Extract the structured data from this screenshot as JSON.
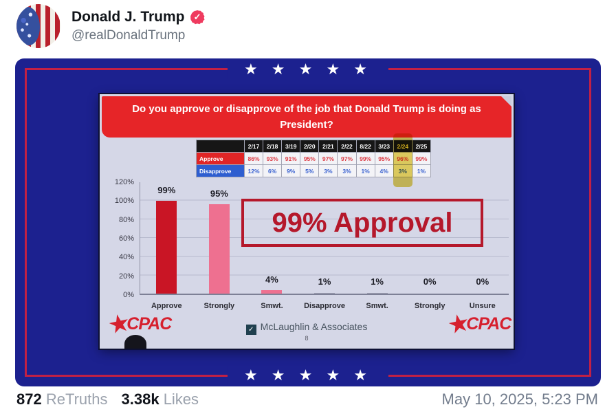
{
  "post": {
    "author": "Donald J. Trump",
    "handle": "@realDonaldTrump",
    "retruths_count": "872",
    "retruths_label": "ReTruths",
    "likes_count": "3.38k",
    "likes_label": "Likes",
    "timestamp": "May 10, 2025, 5:23 PM"
  },
  "slide": {
    "stars": "★ ★ ★ ★ ★",
    "question": "Do you approve or disapprove of the job that Donald Trump is doing as President?",
    "stamp": "99% Approval",
    "cpac": "CPAC",
    "source": "McLaughlin & Associates",
    "page_number": "8",
    "table": {
      "columns": [
        "2/17",
        "2/18",
        "3/19",
        "2/20",
        "2/21",
        "2/22",
        "8/22",
        "3/23",
        "2/24",
        "2/25"
      ],
      "highlight_index": 8,
      "rows": [
        {
          "label": "Approve",
          "values": [
            "86%",
            "93%",
            "91%",
            "95%",
            "97%",
            "97%",
            "99%",
            "95%",
            "96%",
            "99%"
          ]
        },
        {
          "label": "Disapprove",
          "values": [
            "12%",
            "6%",
            "9%",
            "5%",
            "3%",
            "3%",
            "1%",
            "4%",
            "3%",
            "1%"
          ]
        }
      ]
    }
  },
  "chart_data": {
    "type": "bar",
    "title": "Do you approve or disapprove of the job that Donald Trump is doing as President?",
    "categories": [
      "Approve",
      "Strongly",
      "Smwt.",
      "Disapprove",
      "Smwt.",
      "Strongly",
      "Unsure"
    ],
    "values": [
      99,
      95,
      4,
      1,
      1,
      0,
      0
    ],
    "value_labels": [
      "99%",
      "95%",
      "4%",
      "1%",
      "1%",
      "0%",
      "0%"
    ],
    "bar_colors": [
      "#c91525",
      "#ee7090",
      "#ee7090",
      "#9b9db0",
      "#9b9db0",
      "#9b9db0",
      "#9b9db0"
    ],
    "ytick_labels": [
      "0%",
      "20%",
      "40%",
      "60%",
      "80%",
      "100%",
      "120%"
    ],
    "ylim": [
      0,
      120
    ],
    "xlabel": "",
    "ylabel": "",
    "grid": true,
    "legend": false,
    "annotation": "99% Approval",
    "trend_table": {
      "dates": [
        "2/17",
        "2/18",
        "3/19",
        "2/20",
        "2/21",
        "2/22",
        "8/22",
        "3/23",
        "2/24",
        "2/25"
      ],
      "approve": [
        86,
        93,
        91,
        95,
        97,
        97,
        99,
        95,
        96,
        99
      ],
      "disapprove": [
        12,
        6,
        9,
        5,
        3,
        3,
        1,
        4,
        3,
        1
      ],
      "highlighted_date": "2/24"
    }
  },
  "colors": {
    "card_navy": "#1c218f",
    "border_crimson": "#c22044",
    "banner_red": "#e62528",
    "slide_bg": "#d5d7e7",
    "approve_bar": "#c91525",
    "strongly_bar": "#ee7090",
    "stamp_red": "#b5182b",
    "cpac_red": "#d6202e",
    "verified_badge": "#ef3b5f",
    "highlight_yellow": "#e0ca44"
  }
}
